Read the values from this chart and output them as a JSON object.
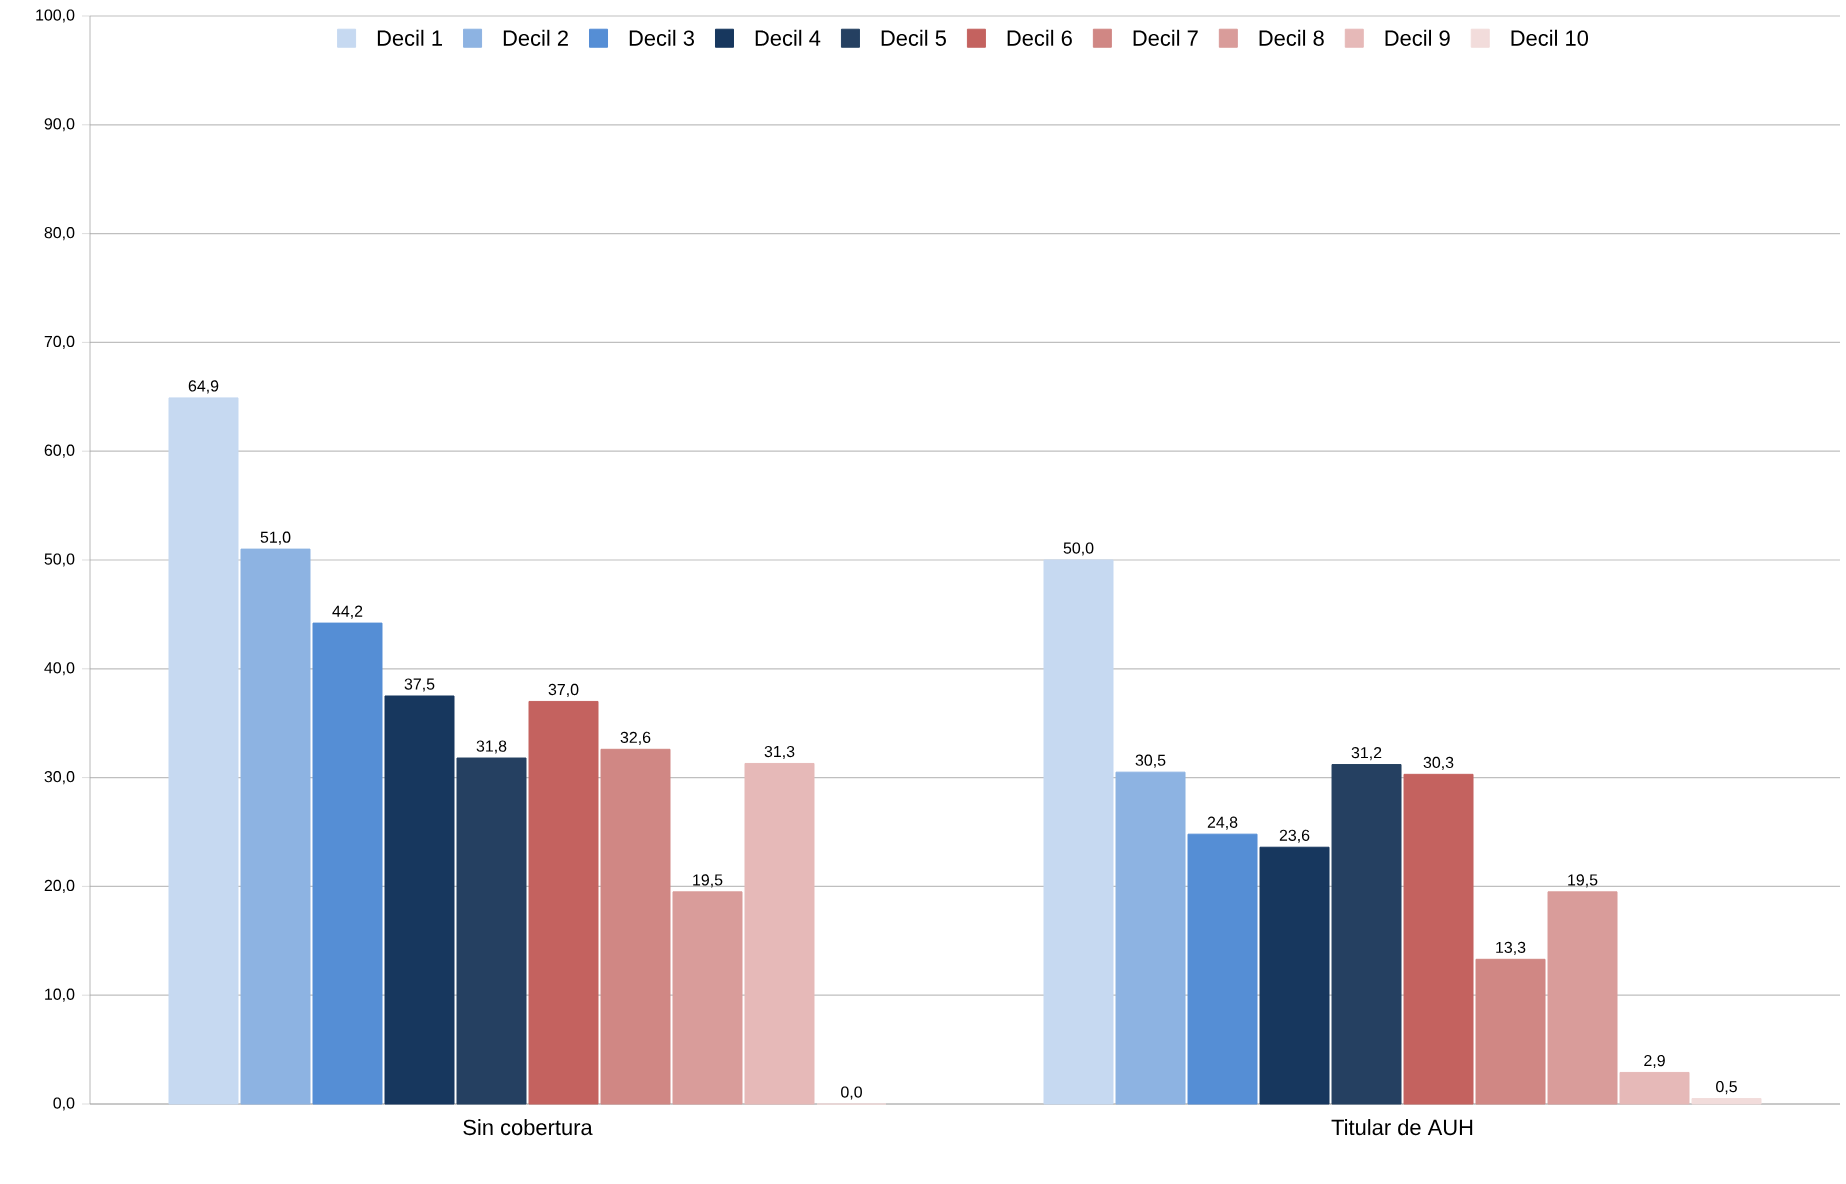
{
  "chart_data": {
    "type": "bar",
    "categories": [
      "Sin cobertura",
      "Titular de AUH"
    ],
    "series": [
      {
        "name": "Decil 1",
        "color": "#c6d9f1",
        "values": [
          64.9,
          50.0
        ],
        "value_labels": [
          "64,9",
          "50,0"
        ]
      },
      {
        "name": "Decil 2",
        "color": "#8db3e2",
        "values": [
          51.0,
          30.5
        ],
        "value_labels": [
          "51,0",
          "30,5"
        ]
      },
      {
        "name": "Decil 3",
        "color": "#558ed5",
        "values": [
          44.2,
          24.8
        ],
        "value_labels": [
          "44,2",
          "24,8"
        ]
      },
      {
        "name": "Decil 4",
        "color": "#17375e",
        "values": [
          37.5,
          23.6
        ],
        "value_labels": [
          "37,5",
          "23,6"
        ]
      },
      {
        "name": "Decil 5",
        "color": "#254061",
        "values": [
          31.8,
          31.2
        ],
        "value_labels": [
          "31,8",
          "31,2"
        ]
      },
      {
        "name": "Decil 6",
        "color": "#c4625f",
        "values": [
          37.0,
          30.3
        ],
        "value_labels": [
          "37,0",
          "30,3"
        ]
      },
      {
        "name": "Decil 7",
        "color": "#d08784",
        "values": [
          32.6,
          13.3
        ],
        "value_labels": [
          "32,6",
          "13,3"
        ]
      },
      {
        "name": "Decil 8",
        "color": "#d99c9a",
        "values": [
          19.5,
          19.5
        ],
        "value_labels": [
          "19,5",
          "19,5"
        ]
      },
      {
        "name": "Decil 9",
        "color": "#e6b9b8",
        "values": [
          31.3,
          2.9
        ],
        "value_labels": [
          "31,3",
          "2,9"
        ]
      },
      {
        "name": "Decil 10",
        "color": "#f2dcdb",
        "values": [
          0.0,
          0.5
        ],
        "value_labels": [
          "0,0",
          "0,5"
        ]
      }
    ],
    "ylim": [
      0,
      100
    ],
    "yticks": [
      {
        "value": 0,
        "label": "0,0"
      },
      {
        "value": 10,
        "label": "10,0"
      },
      {
        "value": 20,
        "label": "20,0"
      },
      {
        "value": 30,
        "label": "30,0"
      },
      {
        "value": 40,
        "label": "40,0"
      },
      {
        "value": 50,
        "label": "50,0"
      },
      {
        "value": 60,
        "label": "60,0"
      },
      {
        "value": 70,
        "label": "70,0"
      },
      {
        "value": 80,
        "label": "80,0"
      },
      {
        "value": 90,
        "label": "90,0"
      },
      {
        "value": 100,
        "label": "100,0"
      }
    ],
    "grid": "y",
    "legend": "top"
  }
}
